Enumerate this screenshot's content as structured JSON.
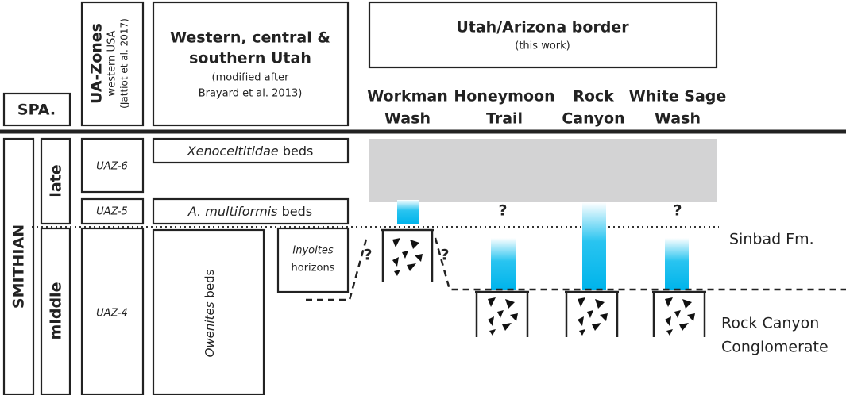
{
  "header": {
    "spa": "SPA.",
    "ua_zones": {
      "title": "UA-Zones",
      "region": "western USA",
      "source": "(Jattiot et al. 2017)"
    },
    "utah": {
      "title_lines": [
        "Western, central &",
        "southern Utah"
      ],
      "note_lines": [
        "(modified after",
        "Brayard et al. 2013)"
      ]
    },
    "border": {
      "title": "Utah/Arizona border",
      "note": "(this work)"
    }
  },
  "sections": [
    [
      "Workman",
      "Wash"
    ],
    [
      "Honeymoon",
      "Trail"
    ],
    [
      "Rock",
      "Canyon"
    ],
    [
      "White Sage",
      "Wash"
    ]
  ],
  "stage": "SMITHIAN",
  "substages": [
    "late",
    "middle"
  ],
  "zones": [
    "UAZ-6",
    "UAZ-5",
    "UAZ-4"
  ],
  "beds": {
    "xenoceltitidae": {
      "taxon": "Xenoceltitidae",
      "suffix": "beds"
    },
    "multiformis": {
      "taxon": "A. multiformis",
      "suffix": "beds"
    },
    "owenites": {
      "taxon": "Owenites",
      "suffix": "beds"
    },
    "inyoites": {
      "taxon": "Inyoites",
      "suffix": "horizons"
    }
  },
  "question_marks": [
    "?",
    "?",
    "?",
    "?"
  ],
  "formations": {
    "sinbad": "Sinbad Fm.",
    "conglomerate": [
      "Rock Canyon",
      "Conglomerate"
    ]
  }
}
